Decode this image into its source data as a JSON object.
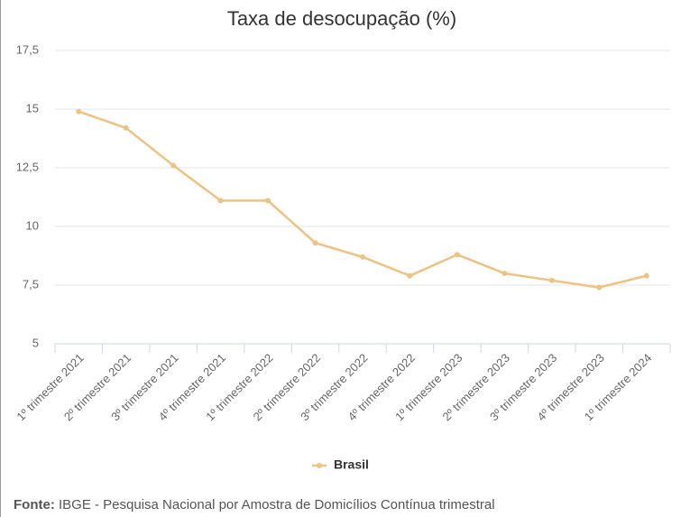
{
  "chart_data": {
    "type": "line",
    "title": "Taxa de desocupação (%)",
    "categories": [
      "1º trimestre 2021",
      "2º trimestre 2021",
      "3º trimestre 2021",
      "4º trimestre 2021",
      "1º trimestre 2022",
      "2º trimestre 2022",
      "3º trimestre 2022",
      "4º trimestre 2022",
      "1º trimestre 2023",
      "2º trimestre 2023",
      "3º trimestre 2023",
      "4º trimestre 2023",
      "1º trimestre 2024"
    ],
    "series": [
      {
        "name": "Brasil",
        "color": "#f0c27f",
        "values": [
          14.9,
          14.2,
          12.6,
          11.1,
          11.1,
          9.3,
          8.7,
          7.9,
          8.8,
          8.0,
          7.7,
          7.4,
          7.9
        ]
      }
    ],
    "ylim": [
      5,
      17.5
    ],
    "yticks": [
      5,
      {
        "value": 7.5,
        "label": "7,5"
      },
      10,
      {
        "value": 12.5,
        "label": "12,5"
      },
      15,
      {
        "value": 17.5,
        "label": "17,5"
      }
    ],
    "grid": true,
    "legend": "bottom",
    "source": {
      "label": "Fonte:",
      "text": "IBGE - Pesquisa Nacional por Amostra de Domicílios Contínua trimestral"
    }
  }
}
